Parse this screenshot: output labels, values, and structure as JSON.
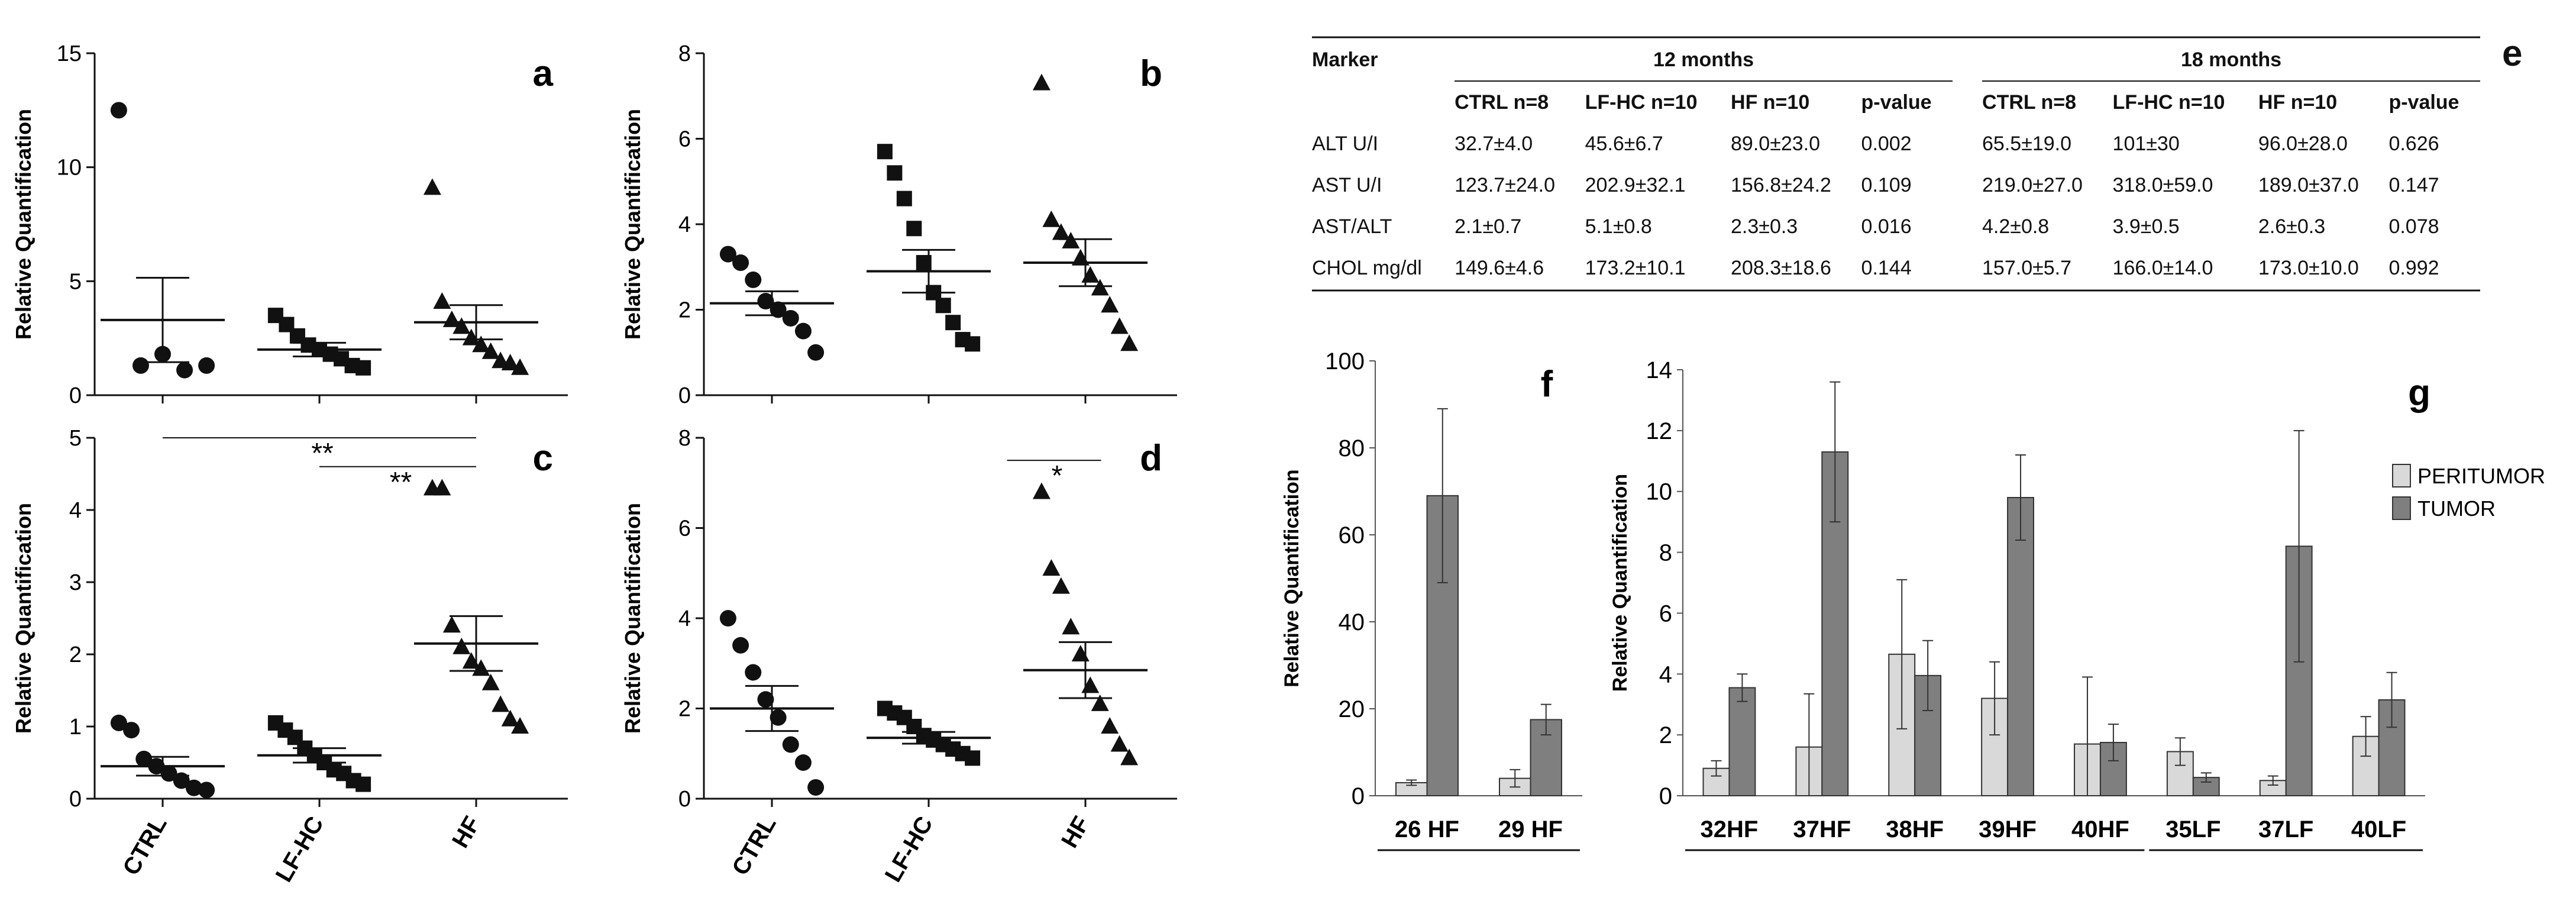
{
  "scatter_panels": [
    {
      "id": "a",
      "letter": "a",
      "ylabel": "Relative Quantification",
      "ylim": [
        0,
        15
      ],
      "yticks": [
        0,
        5,
        10,
        15
      ],
      "categories": [
        "CTRL",
        "LF-HC",
        "HF"
      ],
      "show_xlabels": false,
      "groups": [
        {
          "name": "CTRL",
          "marker": "circle",
          "points": [
            12.5,
            1.3,
            1.8,
            1.1,
            1.3
          ],
          "mean": 3.3,
          "err": 1.85
        },
        {
          "name": "LF-HC",
          "marker": "square",
          "points": [
            3.5,
            3.1,
            2.6,
            2.2,
            2.0,
            1.8,
            1.6,
            1.3,
            1.2
          ],
          "mean": 2.0,
          "err": 0.3
        },
        {
          "name": "HF",
          "marker": "triangle",
          "points": [
            9.1,
            4.1,
            3.3,
            3.0,
            2.5,
            2.2,
            1.9,
            1.5,
            1.4,
            1.2
          ],
          "mean": 3.2,
          "err": 0.75
        }
      ],
      "significance": []
    },
    {
      "id": "b",
      "letter": "b",
      "ylabel": "Relative Quantification",
      "ylim": [
        0,
        8
      ],
      "yticks": [
        0,
        2,
        4,
        6,
        8
      ],
      "categories": [
        "CTRL",
        "LF-HC",
        "HF"
      ],
      "show_xlabels": false,
      "groups": [
        {
          "name": "CTRL",
          "marker": "circle",
          "points": [
            3.3,
            3.1,
            2.7,
            2.2,
            2.0,
            1.8,
            1.5,
            1.0
          ],
          "mean": 2.15,
          "err": 0.28
        },
        {
          "name": "LF-HC",
          "marker": "square",
          "points": [
            5.7,
            5.2,
            4.6,
            3.9,
            3.1,
            2.4,
            2.1,
            1.7,
            1.3,
            1.2
          ],
          "mean": 2.9,
          "err": 0.5
        },
        {
          "name": "HF",
          "marker": "triangle",
          "points": [
            7.3,
            4.1,
            3.8,
            3.6,
            3.2,
            2.8,
            2.5,
            2.1,
            1.6,
            1.2
          ],
          "mean": 3.1,
          "err": 0.55
        }
      ],
      "significance": []
    },
    {
      "id": "c",
      "letter": "c",
      "ylabel": "Relative Quantification",
      "ylim": [
        0,
        5
      ],
      "yticks": [
        0,
        1,
        2,
        3,
        4,
        5
      ],
      "categories": [
        "CTRL",
        "LF-HC",
        "HF"
      ],
      "show_xlabels": true,
      "groups": [
        {
          "name": "CTRL",
          "marker": "circle",
          "points": [
            1.05,
            0.95,
            0.55,
            0.45,
            0.35,
            0.25,
            0.15,
            0.12
          ],
          "mean": 0.45,
          "err": 0.13
        },
        {
          "name": "LF-HC",
          "marker": "square",
          "points": [
            1.05,
            0.95,
            0.85,
            0.7,
            0.6,
            0.5,
            0.4,
            0.35,
            0.25,
            0.2
          ],
          "mean": 0.6,
          "err": 0.1
        },
        {
          "name": "HF",
          "marker": "triangle",
          "points": [
            4.3,
            4.3,
            2.4,
            2.1,
            1.9,
            1.8,
            1.6,
            1.3,
            1.1,
            1.0
          ],
          "mean": 2.15,
          "err": 0.38
        }
      ],
      "significance": [
        {
          "from": 0,
          "to": 2,
          "label": "**",
          "level": 5.0
        },
        {
          "from": 1,
          "to": 2,
          "label": "**",
          "level": 4.6
        }
      ]
    },
    {
      "id": "d",
      "letter": "d",
      "ylabel": "Relative Quantification",
      "ylim": [
        0,
        8
      ],
      "yticks": [
        0,
        2,
        4,
        6,
        8
      ],
      "categories": [
        "CTRL",
        "LF-HC",
        "HF"
      ],
      "show_xlabels": true,
      "groups": [
        {
          "name": "CTRL",
          "marker": "circle",
          "points": [
            4.0,
            3.4,
            2.8,
            2.2,
            1.8,
            1.2,
            0.8,
            0.25
          ],
          "mean": 2.0,
          "err": 0.5
        },
        {
          "name": "LF-HC",
          "marker": "square",
          "points": [
            2.0,
            1.9,
            1.8,
            1.6,
            1.4,
            1.3,
            1.2,
            1.1,
            1.0,
            0.9
          ],
          "mean": 1.35,
          "err": 0.13
        },
        {
          "name": "HF",
          "marker": "triangle",
          "points": [
            6.8,
            5.1,
            4.7,
            3.8,
            3.2,
            2.5,
            2.1,
            1.6,
            1.2,
            0.9
          ],
          "mean": 2.85,
          "err": 0.62
        }
      ],
      "significance": [
        {
          "from": 1.5,
          "to": 2.1,
          "label": "*",
          "level": 7.5
        }
      ]
    }
  ],
  "table_e": {
    "letter": "e",
    "marker_header": "Marker",
    "group_headers": [
      "12 months",
      "18 months"
    ],
    "columns": [
      "CTRL n=8",
      "LF-HC n=10",
      "HF n=10",
      "p-value",
      "CTRL n=8",
      "LF-HC n=10",
      "HF n=10",
      "p-value"
    ],
    "rows": [
      {
        "marker": "ALT U/I",
        "values": [
          "32.7±4.0",
          "45.6±6.7",
          "89.0±23.0",
          "0.002",
          "65.5±19.0",
          "101±30",
          "96.0±28.0",
          "0.626"
        ],
        "bold_index": 3
      },
      {
        "marker": "AST U/I",
        "values": [
          "123.7±24.0",
          "202.9±32.1",
          "156.8±24.2",
          "0.109",
          "219.0±27.0",
          "318.0±59.0",
          "189.0±37.0",
          "0.147"
        ],
        "bold_index": -1
      },
      {
        "marker": "AST/ALT",
        "values": [
          "2.1±0.7",
          "5.1±0.8",
          "2.3±0.3",
          "0.016",
          "4.2±0.8",
          "3.9±0.5",
          "2.6±0.3",
          "0.078"
        ],
        "bold_index": -1
      },
      {
        "marker": "CHOL mg/dl",
        "values": [
          "149.6±4.6",
          "173.2±10.1",
          "208.3±18.6",
          "0.144",
          "157.0±5.7",
          "166.0±14.0",
          "173.0±10.0",
          "0.992"
        ],
        "bold_index": -1
      }
    ]
  },
  "chart_data": [
    {
      "type": "bar",
      "panel": "f",
      "title": "f",
      "ylabel": "Relative Quantification",
      "ylim": [
        0,
        100
      ],
      "yticks": [
        0,
        20,
        40,
        60,
        80,
        100
      ],
      "categories": [
        "26 HF",
        "29 HF"
      ],
      "series": [
        {
          "name": "PERITUMOR",
          "values": [
            3,
            4
          ],
          "errors": [
            0.6,
            2.0
          ]
        },
        {
          "name": "TUMOR",
          "values": [
            69,
            17.5
          ],
          "errors": [
            20,
            3.5
          ]
        }
      ]
    },
    {
      "type": "bar",
      "panel": "g",
      "title": "g",
      "ylabel": "Relative Quantification",
      "ylim": [
        0,
        14
      ],
      "yticks": [
        0,
        2,
        4,
        6,
        8,
        10,
        12,
        14
      ],
      "categories": [
        "32HF",
        "37HF",
        "38HF",
        "39HF",
        "40HF",
        "35LF",
        "37LF",
        "40LF"
      ],
      "group_underlines": [
        [
          0,
          4
        ],
        [
          5,
          7
        ]
      ],
      "series": [
        {
          "name": "PERITUMOR",
          "values": [
            0.9,
            1.6,
            4.65,
            3.2,
            1.7,
            1.45,
            0.5,
            1.95
          ],
          "errors": [
            0.25,
            1.75,
            2.45,
            1.2,
            2.2,
            0.45,
            0.15,
            0.65
          ]
        },
        {
          "name": "TUMOR",
          "values": [
            3.55,
            11.3,
            3.95,
            9.8,
            1.75,
            0.6,
            8.2,
            3.15
          ],
          "errors": [
            0.45,
            2.3,
            1.15,
            1.4,
            0.6,
            0.15,
            3.8,
            0.9
          ]
        }
      ],
      "legend": [
        "PERITUMOR",
        "TUMOR"
      ]
    }
  ],
  "colors": {
    "peritumor": "#d9d9d9",
    "tumor": "#7f7f7f",
    "ink": "#111111"
  }
}
